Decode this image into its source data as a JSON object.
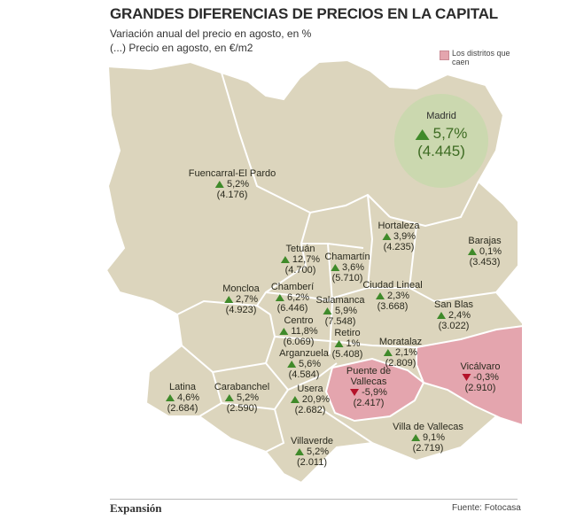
{
  "header": {
    "title": "GRANDES DIFERENCIAS DE PRECIOS EN LA CAPITAL",
    "subtitle1": "Variación anual del precio en agosto, en %",
    "subtitle2": "(...) Precio en agosto, en €/m2"
  },
  "legend": {
    "label": "Los distritos que caen",
    "color": "#e4a5ae"
  },
  "colors": {
    "land": "#dcd5bd",
    "falling": "#e4a5ae",
    "rise_arrow": "#3f8a2a",
    "fall_arrow": "#b4122a",
    "madrid_circle": "#c9d8ae",
    "outside": "#ffffff"
  },
  "madrid": {
    "name": "Madrid",
    "change": "5,7%",
    "price": "(4.445)",
    "trend": "up"
  },
  "districts": [
    {
      "id": "fuencarral",
      "name": "Fuencarral-El Pardo",
      "change": "5,2%",
      "price": "(4.176)",
      "trend": "up"
    },
    {
      "id": "hortaleza",
      "name": "Hortaleza",
      "change": "3,9%",
      "price": "(4.235)",
      "trend": "up"
    },
    {
      "id": "barajas",
      "name": "Barajas",
      "change": "0,1%",
      "price": "(3.453)",
      "trend": "up"
    },
    {
      "id": "tetuan",
      "name": "Tetuán",
      "change": "12,7%",
      "price": "(4.700)",
      "trend": "up"
    },
    {
      "id": "chamartin",
      "name": "Chamartín",
      "change": "3,6%",
      "price": "(5.710)",
      "trend": "up"
    },
    {
      "id": "ciudad-lineal",
      "name": "Ciudad Lineal",
      "change": "2,3%",
      "price": "(3.668)",
      "trend": "up"
    },
    {
      "id": "moncloa",
      "name": "Moncloa",
      "change": "2,7%",
      "price": "(4.923)",
      "trend": "up"
    },
    {
      "id": "chamberi",
      "name": "Chamberí",
      "change": "6,2%",
      "price": "(6.446)",
      "trend": "up"
    },
    {
      "id": "salamanca",
      "name": "Salamanca",
      "change": "5,9%",
      "price": "(7.548)",
      "trend": "up"
    },
    {
      "id": "san-blas",
      "name": "San Blas",
      "change": "2,4%",
      "price": "(3.022)",
      "trend": "up"
    },
    {
      "id": "centro",
      "name": "Centro",
      "change": "11,8%",
      "price": "(6.069)",
      "trend": "up"
    },
    {
      "id": "retiro",
      "name": "Retiro",
      "change": "1%",
      "price": "(5.408)",
      "trend": "up"
    },
    {
      "id": "moratalaz",
      "name": "Moratalaz",
      "change": "2,1%",
      "price": "(2.809)",
      "trend": "up"
    },
    {
      "id": "arganzuela",
      "name": "Arganzuela",
      "change": "5,6%",
      "price": "(4.584)",
      "trend": "up"
    },
    {
      "id": "vicalvaro",
      "name": "Vicálvaro",
      "change": "-0,3%",
      "price": "(2.910)",
      "trend": "down"
    },
    {
      "id": "puente-vallecas",
      "name": "Puente de Vallecas",
      "change": "-5,9%",
      "price": "(2.417)",
      "trend": "down"
    },
    {
      "id": "latina",
      "name": "Latina",
      "change": "4,6%",
      "price": "(2.684)",
      "trend": "up"
    },
    {
      "id": "carabanchel",
      "name": "Carabanchel",
      "change": "5,2%",
      "price": "(2.590)",
      "trend": "up"
    },
    {
      "id": "usera",
      "name": "Usera",
      "change": "20,9%",
      "price": "(2.682)",
      "trend": "up"
    },
    {
      "id": "villa-vallecas",
      "name": "Villa de Vallecas",
      "change": "9,1%",
      "price": "(2.719)",
      "trend": "up"
    },
    {
      "id": "villaverde",
      "name": "Villaverde",
      "change": "5,2%",
      "price": "(2.011)",
      "trend": "up"
    }
  ],
  "footer": {
    "brand": "Expansión",
    "source": "Fuente: Fotocasa"
  }
}
